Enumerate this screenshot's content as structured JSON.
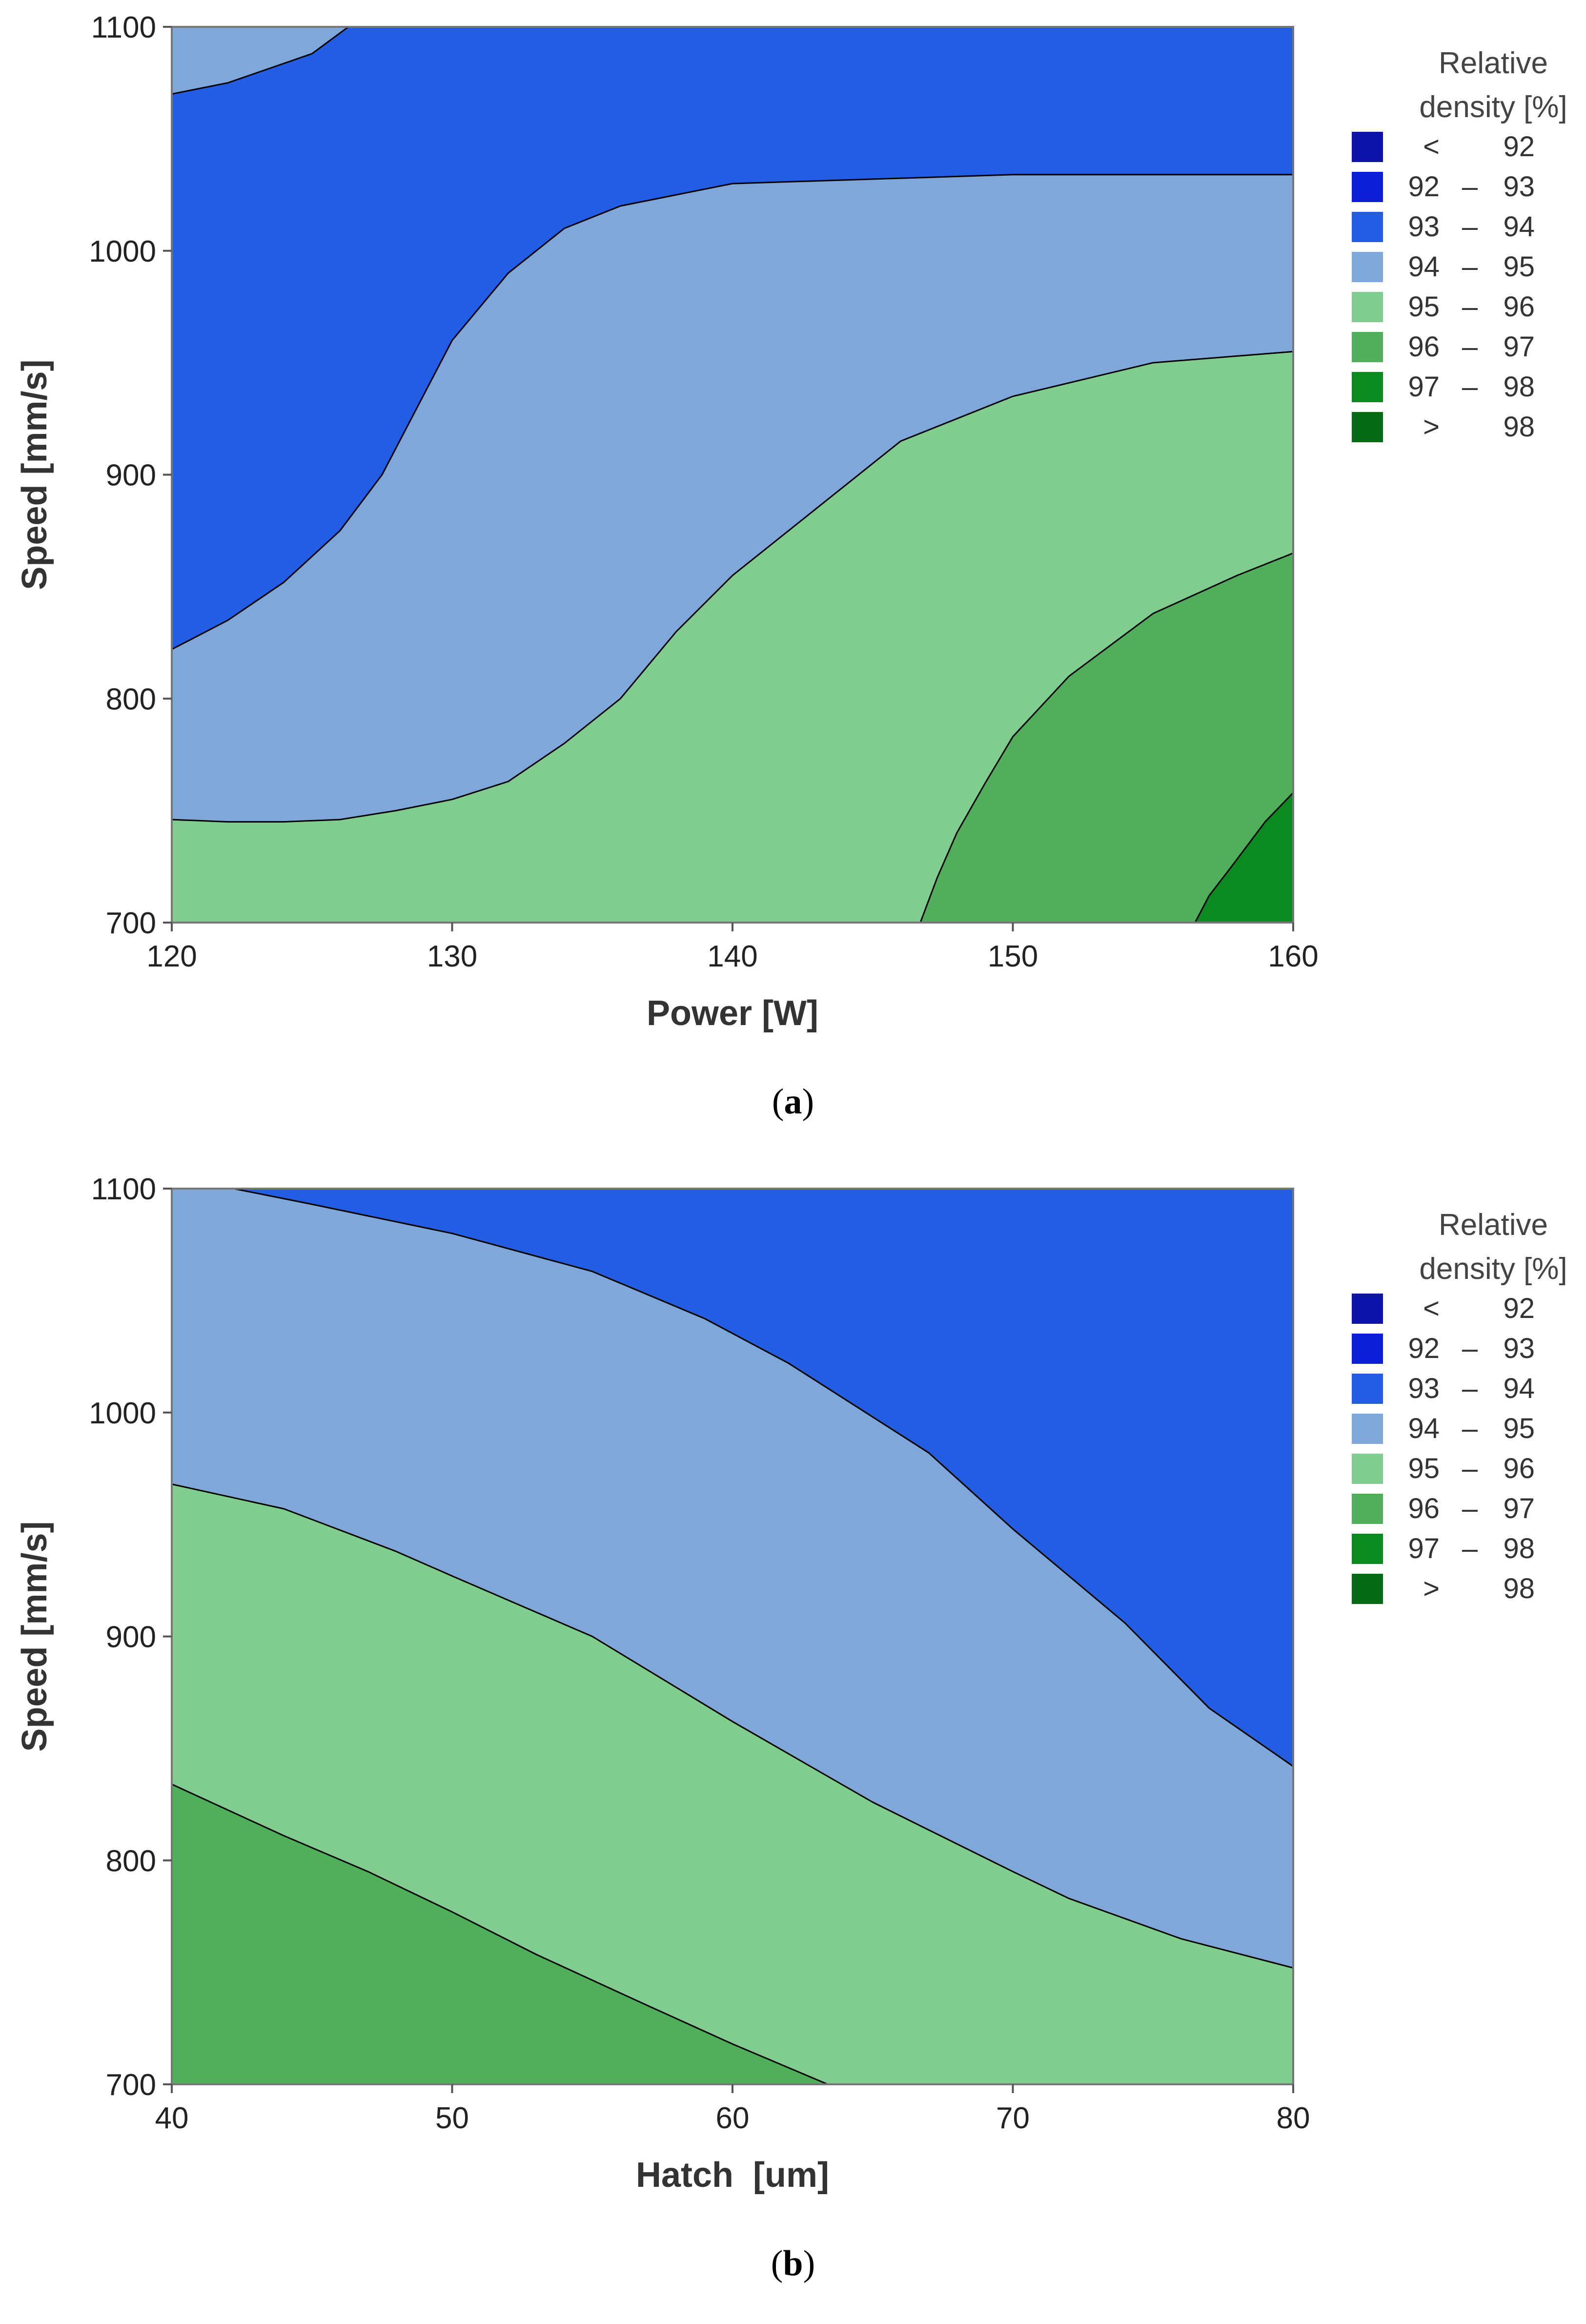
{
  "chart_data": [
    {
      "type": "contour",
      "panel_label": "a",
      "xlabel": "Power [W]",
      "ylabel": "Speed [mm/s]",
      "xlim": [
        120,
        160
      ],
      "ylim": [
        700,
        1100
      ],
      "xticks": [
        120,
        130,
        140,
        150,
        160
      ],
      "yticks": [
        700,
        800,
        900,
        1000,
        1100
      ],
      "legend_title": [
        "Relative",
        "density [%]"
      ],
      "legend": [
        {
          "low": "<",
          "high": "92",
          "sep": "",
          "color": "#0f14a8"
        },
        {
          "low": "92",
          "high": "93",
          "sep": "–",
          "color": "#0c1ed6"
        },
        {
          "low": "93",
          "high": "94",
          "sep": "–",
          "color": "#225de3"
        },
        {
          "low": "94",
          "high": "95",
          "sep": "–",
          "color": "#7fa7d9"
        },
        {
          "low": "95",
          "high": "96",
          "sep": "–",
          "color": "#80cd8f"
        },
        {
          "low": "96",
          "high": "97",
          "sep": "–",
          "color": "#51ae5b"
        },
        {
          "low": "97",
          "high": "98",
          "sep": "–",
          "color": "#0a8a1f"
        },
        {
          "low": ">",
          "high": "98",
          "sep": "",
          "color": "#076b16"
        }
      ],
      "regions": [
        {
          "level": "93-94",
          "color": "#225de3",
          "points": [
            [
              120,
              700
            ],
            [
              160,
              700
            ],
            [
              160,
              1100
            ],
            [
              120,
              1100
            ]
          ]
        },
        {
          "level": "94-95",
          "color": "#7fa7d9",
          "points": [
            [
              120,
              1100
            ],
            [
              120,
              1070
            ],
            [
              122,
              1075
            ],
            [
              125,
              1088
            ],
            [
              126.3,
              1100
            ]
          ]
        },
        {
          "level": "94-95",
          "color": "#7fa7d9",
          "points": [
            [
              120,
              700
            ],
            [
              160,
              700
            ],
            [
              160,
              1034
            ],
            [
              150,
              1034
            ],
            [
              140,
              1030
            ],
            [
              136,
              1020
            ],
            [
              134,
              1010
            ],
            [
              132,
              990
            ],
            [
              130,
              960
            ],
            [
              127.5,
              900
            ],
            [
              126,
              875
            ],
            [
              124,
              852
            ],
            [
              122,
              835
            ],
            [
              120,
              822
            ]
          ]
        },
        {
          "level": "95-96",
          "color": "#80cd8f",
          "points": [
            [
              120,
              700
            ],
            [
              160,
              700
            ],
            [
              160,
              955
            ],
            [
              155,
              950
            ],
            [
              150,
              935
            ],
            [
              146,
              915
            ],
            [
              144,
              895
            ],
            [
              142,
              875
            ],
            [
              140,
              855
            ],
            [
              138,
              830
            ],
            [
              136,
              800
            ],
            [
              134,
              780
            ],
            [
              132,
              763
            ],
            [
              130,
              755
            ],
            [
              128,
              750
            ],
            [
              126,
              746
            ],
            [
              124,
              745
            ],
            [
              122,
              745
            ],
            [
              120,
              746
            ]
          ]
        },
        {
          "level": "96-97",
          "color": "#51ae5b",
          "points": [
            [
              146.7,
              700
            ],
            [
              160,
              700
            ],
            [
              160,
              865
            ],
            [
              158,
              855
            ],
            [
              155,
              838
            ],
            [
              152,
              810
            ],
            [
              150,
              783
            ],
            [
              149,
              762
            ],
            [
              148,
              740
            ],
            [
              147.3,
              720
            ]
          ]
        },
        {
          "level": "97-98",
          "color": "#0a8a1f",
          "points": [
            [
              156.5,
              700
            ],
            [
              160,
              700
            ],
            [
              160,
              758
            ],
            [
              159,
              745
            ],
            [
              157.8,
              725
            ],
            [
              157,
              712
            ]
          ]
        }
      ]
    },
    {
      "type": "contour",
      "panel_label": "b",
      "xlabel": "Hatch  [um]",
      "ylabel": "Speed [mm/s]",
      "xlim": [
        40,
        80
      ],
      "ylim": [
        700,
        1100
      ],
      "xticks": [
        40,
        50,
        60,
        70,
        80
      ],
      "yticks": [
        700,
        800,
        900,
        1000,
        1100
      ],
      "legend_title": [
        "Relative",
        "density [%]"
      ],
      "legend": [
        {
          "low": "<",
          "high": "92",
          "sep": "",
          "color": "#0f14a8"
        },
        {
          "low": "92",
          "high": "93",
          "sep": "–",
          "color": "#0c1ed6"
        },
        {
          "low": "93",
          "high": "94",
          "sep": "–",
          "color": "#225de3"
        },
        {
          "low": "94",
          "high": "95",
          "sep": "–",
          "color": "#7fa7d9"
        },
        {
          "low": "95",
          "high": "96",
          "sep": "–",
          "color": "#80cd8f"
        },
        {
          "low": "96",
          "high": "97",
          "sep": "–",
          "color": "#51ae5b"
        },
        {
          "low": "97",
          "high": "98",
          "sep": "–",
          "color": "#0a8a1f"
        },
        {
          "low": ">",
          "high": "98",
          "sep": "",
          "color": "#076b16"
        }
      ],
      "regions": [
        {
          "level": "93-94",
          "color": "#225de3",
          "points": [
            [
              40,
              700
            ],
            [
              80,
              700
            ],
            [
              80,
              1100
            ],
            [
              40,
              1100
            ]
          ]
        },
        {
          "level": "94-95",
          "color": "#7fa7d9",
          "points": [
            [
              40,
              700
            ],
            [
              80,
              700
            ],
            [
              80,
              842
            ],
            [
              77,
              868
            ],
            [
              74,
              906
            ],
            [
              70,
              948
            ],
            [
              67,
              982
            ],
            [
              65,
              998
            ],
            [
              62,
              1022
            ],
            [
              59,
              1042
            ],
            [
              55,
              1063
            ],
            [
              50,
              1080
            ],
            [
              45,
              1093
            ],
            [
              42.2,
              1100
            ],
            [
              40,
              1100
            ]
          ]
        },
        {
          "level": "95-96",
          "color": "#80cd8f",
          "points": [
            [
              40,
              700
            ],
            [
              80,
              700
            ],
            [
              80,
              752
            ],
            [
              76,
              765
            ],
            [
              72,
              783
            ],
            [
              70,
              795
            ],
            [
              65,
              826
            ],
            [
              60,
              862
            ],
            [
              55,
              900
            ],
            [
              50,
              927
            ],
            [
              48,
              938
            ],
            [
              44,
              957
            ],
            [
              40,
              968
            ]
          ]
        },
        {
          "level": "96-97",
          "color": "#51ae5b",
          "points": [
            [
              40,
              700
            ],
            [
              63.4,
              700
            ],
            [
              60,
              718
            ],
            [
              57,
              735
            ],
            [
              53,
              758
            ],
            [
              50,
              777
            ],
            [
              47,
              795
            ],
            [
              44,
              811
            ],
            [
              40,
              834
            ]
          ]
        }
      ]
    }
  ],
  "captions": [
    {
      "open": "(",
      "label": "a",
      "close": ")"
    },
    {
      "open": "(",
      "label": "b",
      "close": ")"
    }
  ]
}
